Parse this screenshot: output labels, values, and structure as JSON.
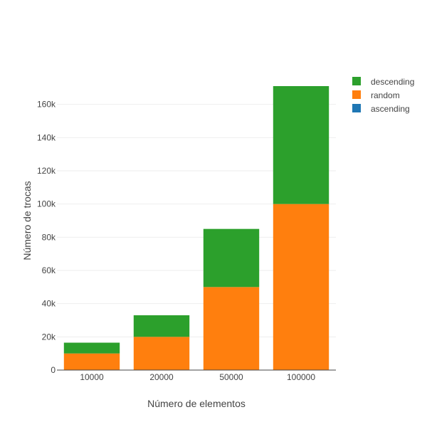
{
  "chart_data": {
    "type": "bar",
    "stacked": true,
    "categories": [
      "10000",
      "20000",
      "50000",
      "100000"
    ],
    "series": [
      {
        "name": "ascending",
        "color": "#1f77b4",
        "values": [
          0,
          0,
          0,
          0
        ]
      },
      {
        "name": "random",
        "color": "#ff7f0e",
        "values": [
          10000,
          20000,
          50000,
          100000
        ]
      },
      {
        "name": "descending",
        "color": "#2ca02c",
        "values": [
          6500,
          13000,
          35000,
          71000
        ]
      }
    ],
    "legend_order": [
      "descending",
      "random",
      "ascending"
    ],
    "xlabel": "Número de elementos",
    "ylabel": "Número de trocas",
    "ylim": [
      0,
      171000
    ],
    "yticks": [
      0,
      20000,
      40000,
      60000,
      80000,
      100000,
      120000,
      140000,
      160000
    ],
    "ytick_labels": [
      "0",
      "20k",
      "40k",
      "60k",
      "80k",
      "100k",
      "120k",
      "140k",
      "160k"
    ],
    "grid": true,
    "legend_position": "top-right"
  }
}
